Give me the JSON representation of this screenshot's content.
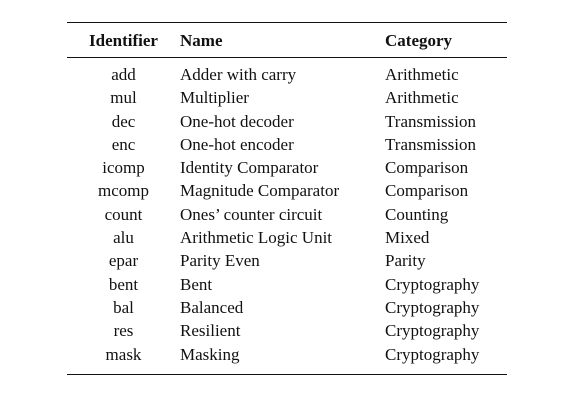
{
  "table": {
    "headers": {
      "identifier": "Identifier",
      "name": "Name",
      "category": "Category"
    },
    "rows": [
      {
        "identifier": "add",
        "name": "Adder with carry",
        "category": "Arithmetic"
      },
      {
        "identifier": "mul",
        "name": "Multiplier",
        "category": "Arithmetic"
      },
      {
        "identifier": "dec",
        "name": "One-hot decoder",
        "category": "Transmission"
      },
      {
        "identifier": "enc",
        "name": "One-hot encoder",
        "category": "Transmission"
      },
      {
        "identifier": "icomp",
        "name": "Identity Comparator",
        "category": "Comparison"
      },
      {
        "identifier": "mcomp",
        "name": "Magnitude Comparator",
        "category": "Comparison"
      },
      {
        "identifier": "count",
        "name": "Ones’ counter circuit",
        "category": "Counting"
      },
      {
        "identifier": "alu",
        "name": "Arithmetic Logic Unit",
        "category": "Mixed"
      },
      {
        "identifier": "epar",
        "name": "Parity Even",
        "category": "Parity"
      },
      {
        "identifier": "bent",
        "name": "Bent",
        "category": "Cryptography"
      },
      {
        "identifier": "bal",
        "name": "Balanced",
        "category": "Cryptography"
      },
      {
        "identifier": "res",
        "name": "Resilient",
        "category": "Cryptography"
      },
      {
        "identifier": "mask",
        "name": "Masking",
        "category": "Cryptography"
      }
    ]
  }
}
